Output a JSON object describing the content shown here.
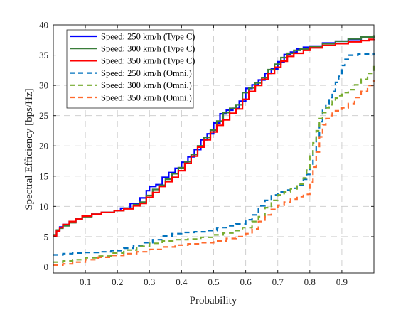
{
  "chart_data": {
    "type": "line",
    "title": "",
    "xlabel": "Probability",
    "ylabel": "Spectral Efficiency [bps/Hz]",
    "xlim": [
      0,
      1
    ],
    "ylim": [
      -1,
      40
    ],
    "xticks": [
      0.1,
      0.2,
      0.3,
      0.4,
      0.5,
      0.6,
      0.7,
      0.8,
      0.9
    ],
    "xtick_labels": [
      "0.1",
      "0.2",
      "0.3",
      "0.4",
      "0.5",
      "0.6",
      "0.7",
      "0.8",
      "0.9"
    ],
    "yticks": [
      0,
      5,
      10,
      15,
      20,
      25,
      30,
      35,
      40
    ],
    "ytick_labels": [
      "0",
      "5",
      "10",
      "15",
      "20",
      "25",
      "30",
      "35",
      "40"
    ],
    "grid": true,
    "legend_position": "top-left",
    "series": [
      {
        "name": "Speed: 250 km/h (Type C)",
        "color": "#0000ff",
        "dash": "solid",
        "points": [
          [
            0.0,
            5.2
          ],
          [
            0.01,
            6.0
          ],
          [
            0.02,
            6.6
          ],
          [
            0.03,
            7.0
          ],
          [
            0.05,
            7.5
          ],
          [
            0.07,
            8.0
          ],
          [
            0.09,
            8.4
          ],
          [
            0.12,
            8.7
          ],
          [
            0.15,
            9.0
          ],
          [
            0.19,
            9.3
          ],
          [
            0.21,
            9.7
          ],
          [
            0.24,
            10.5
          ],
          [
            0.27,
            11.4
          ],
          [
            0.29,
            12.6
          ],
          [
            0.3,
            13.3
          ],
          [
            0.32,
            13.6
          ],
          [
            0.34,
            14.8
          ],
          [
            0.36,
            15.6
          ],
          [
            0.38,
            16.3
          ],
          [
            0.4,
            17.3
          ],
          [
            0.42,
            18.2
          ],
          [
            0.44,
            19.4
          ],
          [
            0.46,
            21.0
          ],
          [
            0.48,
            22.0
          ],
          [
            0.5,
            23.8
          ],
          [
            0.52,
            25.3
          ],
          [
            0.54,
            25.9
          ],
          [
            0.56,
            26.2
          ],
          [
            0.58,
            27.4
          ],
          [
            0.6,
            29.5
          ],
          [
            0.62,
            30.1
          ],
          [
            0.64,
            30.9
          ],
          [
            0.66,
            32.0
          ],
          [
            0.68,
            32.7
          ],
          [
            0.7,
            33.9
          ],
          [
            0.72,
            35.1
          ],
          [
            0.74,
            35.5
          ],
          [
            0.76,
            36.0
          ],
          [
            0.78,
            36.3
          ],
          [
            0.8,
            36.5
          ],
          [
            0.84,
            37.0
          ],
          [
            0.88,
            37.3
          ],
          [
            0.92,
            37.6
          ],
          [
            0.96,
            37.9
          ],
          [
            1.0,
            38.1
          ]
        ]
      },
      {
        "name": "Speed: 300 km/h (Type C)",
        "color": "#3a7d3a",
        "dash": "solid",
        "points": [
          [
            0.0,
            5.3
          ],
          [
            0.01,
            6.1
          ],
          [
            0.02,
            6.4
          ],
          [
            0.03,
            6.8
          ],
          [
            0.05,
            7.3
          ],
          [
            0.07,
            7.9
          ],
          [
            0.09,
            8.3
          ],
          [
            0.12,
            8.7
          ],
          [
            0.15,
            9.0
          ],
          [
            0.19,
            9.3
          ],
          [
            0.22,
            9.7
          ],
          [
            0.25,
            10.3
          ],
          [
            0.27,
            10.7
          ],
          [
            0.29,
            11.8
          ],
          [
            0.31,
            12.8
          ],
          [
            0.33,
            13.5
          ],
          [
            0.35,
            14.5
          ],
          [
            0.37,
            15.4
          ],
          [
            0.39,
            16.4
          ],
          [
            0.41,
            17.4
          ],
          [
            0.43,
            18.6
          ],
          [
            0.45,
            20.0
          ],
          [
            0.47,
            21.4
          ],
          [
            0.49,
            22.6
          ],
          [
            0.51,
            24.1
          ],
          [
            0.53,
            25.5
          ],
          [
            0.55,
            26.2
          ],
          [
            0.57,
            26.8
          ],
          [
            0.59,
            28.8
          ],
          [
            0.61,
            29.6
          ],
          [
            0.63,
            30.4
          ],
          [
            0.65,
            31.3
          ],
          [
            0.67,
            32.6
          ],
          [
            0.69,
            33.5
          ],
          [
            0.71,
            34.6
          ],
          [
            0.73,
            35.3
          ],
          [
            0.75,
            35.8
          ],
          [
            0.77,
            36.0
          ],
          [
            0.8,
            36.4
          ],
          [
            0.84,
            36.9
          ],
          [
            0.88,
            37.3
          ],
          [
            0.92,
            37.7
          ],
          [
            0.96,
            38.0
          ],
          [
            1.0,
            38.3
          ]
        ]
      },
      {
        "name": "Speed: 350 km/h (Type C)",
        "color": "#ff0000",
        "dash": "solid",
        "points": [
          [
            0.0,
            5.1
          ],
          [
            0.01,
            5.9
          ],
          [
            0.02,
            6.5
          ],
          [
            0.03,
            7.0
          ],
          [
            0.05,
            7.5
          ],
          [
            0.07,
            7.9
          ],
          [
            0.09,
            8.4
          ],
          [
            0.12,
            8.7
          ],
          [
            0.15,
            9.0
          ],
          [
            0.19,
            9.3
          ],
          [
            0.22,
            9.6
          ],
          [
            0.25,
            10.1
          ],
          [
            0.27,
            10.5
          ],
          [
            0.29,
            11.5
          ],
          [
            0.31,
            12.3
          ],
          [
            0.33,
            13.3
          ],
          [
            0.35,
            14.1
          ],
          [
            0.37,
            14.8
          ],
          [
            0.39,
            15.9
          ],
          [
            0.41,
            17.1
          ],
          [
            0.43,
            18.3
          ],
          [
            0.45,
            19.8
          ],
          [
            0.47,
            21.0
          ],
          [
            0.49,
            22.3
          ],
          [
            0.51,
            23.4
          ],
          [
            0.53,
            24.3
          ],
          [
            0.55,
            25.4
          ],
          [
            0.57,
            26.1
          ],
          [
            0.59,
            27.7
          ],
          [
            0.61,
            29.0
          ],
          [
            0.63,
            30.0
          ],
          [
            0.65,
            31.0
          ],
          [
            0.67,
            32.0
          ],
          [
            0.69,
            33.0
          ],
          [
            0.71,
            34.0
          ],
          [
            0.73,
            34.8
          ],
          [
            0.75,
            35.3
          ],
          [
            0.78,
            35.8
          ],
          [
            0.8,
            36.2
          ],
          [
            0.84,
            36.6
          ],
          [
            0.88,
            36.9
          ],
          [
            0.92,
            37.2
          ],
          [
            0.96,
            37.4
          ],
          [
            0.985,
            37.6
          ],
          [
            1.0,
            37.7
          ]
        ]
      },
      {
        "name": "Speed: 250 km/h (Omni.)",
        "color": "#0072bd",
        "dash": "dashed",
        "points": [
          [
            0.0,
            2.0
          ],
          [
            0.03,
            2.2
          ],
          [
            0.06,
            2.3
          ],
          [
            0.1,
            2.4
          ],
          [
            0.14,
            2.5
          ],
          [
            0.18,
            2.7
          ],
          [
            0.22,
            3.1
          ],
          [
            0.25,
            3.5
          ],
          [
            0.28,
            4.0
          ],
          [
            0.31,
            4.5
          ],
          [
            0.34,
            5.1
          ],
          [
            0.37,
            5.5
          ],
          [
            0.4,
            5.7
          ],
          [
            0.44,
            5.8
          ],
          [
            0.48,
            6.0
          ],
          [
            0.51,
            6.5
          ],
          [
            0.54,
            6.8
          ],
          [
            0.57,
            7.1
          ],
          [
            0.6,
            7.8
          ],
          [
            0.62,
            8.6
          ],
          [
            0.64,
            10.1
          ],
          [
            0.66,
            11.0
          ],
          [
            0.68,
            11.9
          ],
          [
            0.7,
            12.4
          ],
          [
            0.72,
            12.7
          ],
          [
            0.74,
            13.0
          ],
          [
            0.76,
            13.5
          ],
          [
            0.78,
            14.5
          ],
          [
            0.79,
            15.3
          ],
          [
            0.8,
            17.0
          ],
          [
            0.81,
            19.0
          ],
          [
            0.82,
            21.5
          ],
          [
            0.83,
            24.0
          ],
          [
            0.84,
            26.0
          ],
          [
            0.85,
            27.0
          ],
          [
            0.86,
            28.0
          ],
          [
            0.87,
            29.0
          ],
          [
            0.88,
            30.5
          ],
          [
            0.89,
            31.5
          ],
          [
            0.9,
            33.3
          ],
          [
            0.91,
            34.3
          ],
          [
            0.92,
            35.0
          ],
          [
            0.95,
            35.2
          ],
          [
            1.0,
            35.3
          ]
        ]
      },
      {
        "name": "Speed: 300 km/h (Omni.)",
        "color": "#77ac30",
        "dash": "dashed",
        "points": [
          [
            0.0,
            0.8
          ],
          [
            0.03,
            1.0
          ],
          [
            0.06,
            1.2
          ],
          [
            0.1,
            1.5
          ],
          [
            0.14,
            1.8
          ],
          [
            0.18,
            2.3
          ],
          [
            0.22,
            2.8
          ],
          [
            0.26,
            3.4
          ],
          [
            0.3,
            3.9
          ],
          [
            0.34,
            4.3
          ],
          [
            0.38,
            4.5
          ],
          [
            0.42,
            4.6
          ],
          [
            0.46,
            4.9
          ],
          [
            0.5,
            5.3
          ],
          [
            0.53,
            5.6
          ],
          [
            0.56,
            6.0
          ],
          [
            0.59,
            6.5
          ],
          [
            0.62,
            7.5
          ],
          [
            0.64,
            8.3
          ],
          [
            0.66,
            9.8
          ],
          [
            0.68,
            11.0
          ],
          [
            0.7,
            11.9
          ],
          [
            0.72,
            12.4
          ],
          [
            0.74,
            12.9
          ],
          [
            0.76,
            13.7
          ],
          [
            0.78,
            14.7
          ],
          [
            0.79,
            16.0
          ],
          [
            0.8,
            18.5
          ],
          [
            0.81,
            20.5
          ],
          [
            0.82,
            22.5
          ],
          [
            0.83,
            24.5
          ],
          [
            0.84,
            25.5
          ],
          [
            0.85,
            26.3
          ],
          [
            0.86,
            26.8
          ],
          [
            0.87,
            27.4
          ],
          [
            0.88,
            27.9
          ],
          [
            0.89,
            28.3
          ],
          [
            0.9,
            28.8
          ],
          [
            0.92,
            29.3
          ],
          [
            0.94,
            30.1
          ],
          [
            0.96,
            31.0
          ],
          [
            0.98,
            32.0
          ],
          [
            1.0,
            33.4
          ]
        ]
      },
      {
        "name": "Speed: 350 km/h (Omni.)",
        "color": "#ff6a2d",
        "dash": "dashed",
        "points": [
          [
            0.0,
            0.3
          ],
          [
            0.03,
            0.5
          ],
          [
            0.06,
            0.8
          ],
          [
            0.1,
            1.2
          ],
          [
            0.14,
            1.6
          ],
          [
            0.18,
            1.9
          ],
          [
            0.22,
            2.2
          ],
          [
            0.26,
            2.5
          ],
          [
            0.3,
            2.9
          ],
          [
            0.34,
            3.3
          ],
          [
            0.38,
            3.6
          ],
          [
            0.42,
            3.8
          ],
          [
            0.46,
            4.0
          ],
          [
            0.5,
            4.3
          ],
          [
            0.54,
            4.7
          ],
          [
            0.57,
            5.0
          ],
          [
            0.6,
            5.5
          ],
          [
            0.62,
            6.3
          ],
          [
            0.64,
            7.5
          ],
          [
            0.66,
            8.6
          ],
          [
            0.68,
            9.5
          ],
          [
            0.7,
            10.2
          ],
          [
            0.72,
            10.7
          ],
          [
            0.74,
            11.2
          ],
          [
            0.76,
            11.6
          ],
          [
            0.78,
            12.0
          ],
          [
            0.8,
            14.0
          ],
          [
            0.81,
            16.5
          ],
          [
            0.82,
            19.0
          ],
          [
            0.83,
            21.5
          ],
          [
            0.84,
            23.5
          ],
          [
            0.85,
            24.5
          ],
          [
            0.86,
            25.0
          ],
          [
            0.87,
            25.4
          ],
          [
            0.88,
            25.8
          ],
          [
            0.9,
            26.3
          ],
          [
            0.92,
            27.0
          ],
          [
            0.94,
            28.0
          ],
          [
            0.96,
            29.0
          ],
          [
            0.98,
            30.0
          ],
          [
            1.0,
            30.9
          ]
        ]
      }
    ]
  }
}
